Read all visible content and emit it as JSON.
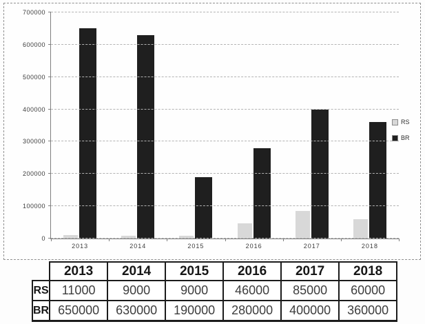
{
  "chart_data": {
    "type": "bar",
    "title": "",
    "xlabel": "",
    "ylabel": "",
    "categories": [
      "2013",
      "2014",
      "2015",
      "2016",
      "2017",
      "2018"
    ],
    "series": [
      {
        "name": "RS",
        "color": "#d8d8d8",
        "values": [
          11000,
          9000,
          9000,
          46000,
          85000,
          60000
        ]
      },
      {
        "name": "BR",
        "color": "#1f1f1f",
        "values": [
          650000,
          630000,
          190000,
          280000,
          400000,
          360000
        ]
      }
    ],
    "ylim": [
      0,
      700000
    ],
    "ytick_step": 100000,
    "grid": true,
    "legend_position": "right"
  },
  "legend": {
    "items": [
      {
        "label": "RS",
        "color": "#d8d8d8"
      },
      {
        "label": "BR",
        "color": "#1f1f1f"
      }
    ]
  },
  "table": {
    "col_headers": [
      "2013",
      "2014",
      "2015",
      "2016",
      "2017",
      "2018"
    ],
    "rows": [
      {
        "label": "RS",
        "values": [
          "11000",
          "9000",
          "9000",
          "46000",
          "85000",
          "60000"
        ]
      },
      {
        "label": "BR",
        "values": [
          "650000",
          "630000",
          "190000",
          "280000",
          "400000",
          "360000"
        ]
      }
    ]
  },
  "colors": {
    "rs_bar": "#d8d8d8",
    "br_bar": "#1f1f1f",
    "gridline": "#b3b3b3",
    "axis": "#7d7d7d",
    "frame_border": "#8f8f8f",
    "table_border": "#1b1b1b"
  }
}
